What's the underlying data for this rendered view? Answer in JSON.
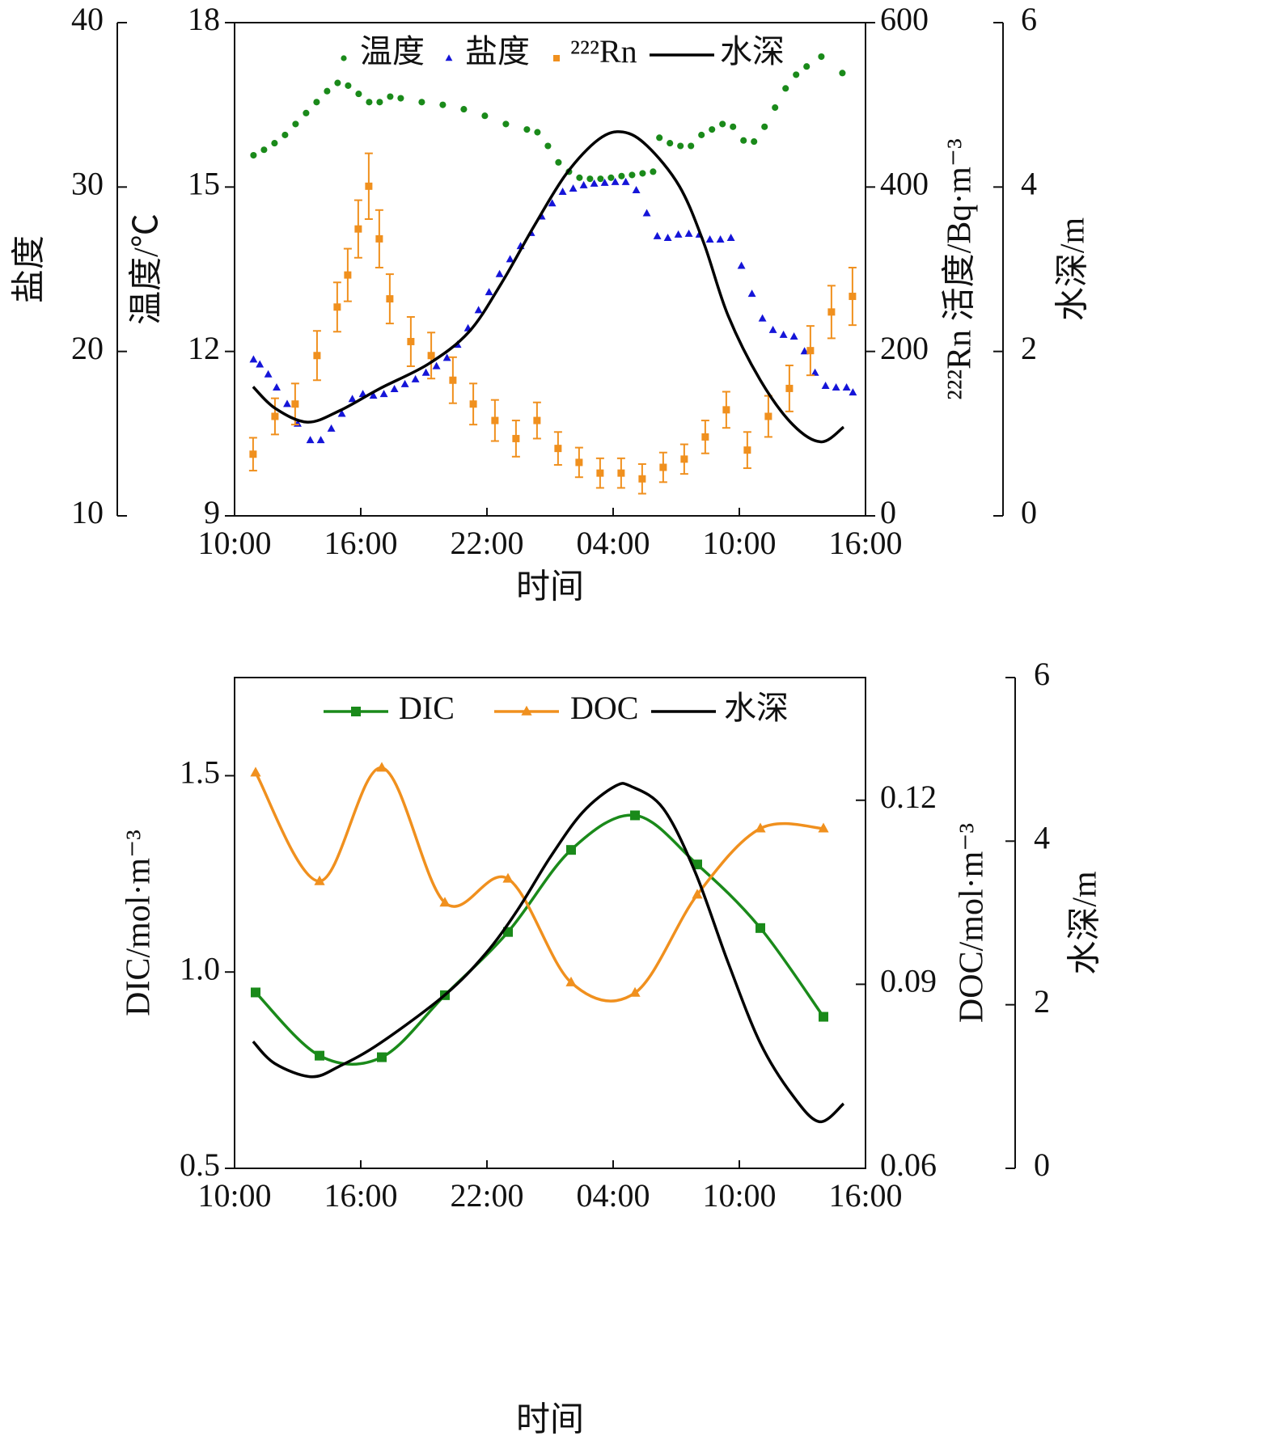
{
  "chart_data": [
    {
      "type": "combo",
      "xlabel": "时间",
      "xlim": [
        10,
        40
      ],
      "xticks": [
        {
          "value": 10,
          "label": "10:00"
        },
        {
          "value": 16,
          "label": "16:00"
        },
        {
          "value": 22,
          "label": "22:00"
        },
        {
          "value": 28,
          "label": "04:00"
        },
        {
          "value": 34,
          "label": "10:00"
        },
        {
          "value": 40,
          "label": "16:00"
        }
      ],
      "ylabel": "温度/℃",
      "ylim": [
        9,
        18
      ],
      "yticks": [
        9,
        12,
        15,
        18
      ],
      "y2label": "²²²Rn 活度/Bq·m⁻³",
      "y2lim": [
        0,
        600
      ],
      "y2ticks": [
        0,
        200,
        400,
        600
      ],
      "y3label": "盐度",
      "y3lim": [
        10,
        40
      ],
      "y3ticks": [
        10,
        20,
        30,
        40
      ],
      "y4label": "水深/m",
      "y4lim": [
        0,
        6
      ],
      "y4ticks": [
        0,
        2,
        4,
        6
      ],
      "series": [
        {
          "name": "温度",
          "type": "scatter",
          "marker": "circle",
          "color": "#1a8a1a",
          "axis": "y",
          "x": [
            10.9,
            11.4,
            11.9,
            12.4,
            12.9,
            13.4,
            13.9,
            14.4,
            14.9,
            15.4,
            15.9,
            16.4,
            16.9,
            17.4,
            17.9,
            18.9,
            19.9,
            20.9,
            21.9,
            22.9,
            23.9,
            24.4,
            24.9,
            25.4,
            25.9,
            26.4,
            26.9,
            27.4,
            27.9,
            28.4,
            28.9,
            29.4,
            29.9,
            30.2,
            30.7,
            31.2,
            31.7,
            32.2,
            32.7,
            33.2,
            33.7,
            34.2,
            34.7,
            35.2,
            35.7,
            36.2,
            36.7,
            37.2,
            37.9,
            38.9
          ],
          "values": [
            15.58,
            15.68,
            15.8,
            15.95,
            16.15,
            16.35,
            16.55,
            16.75,
            16.9,
            16.85,
            16.7,
            16.55,
            16.55,
            16.65,
            16.62,
            16.55,
            16.5,
            16.42,
            16.3,
            16.15,
            16.05,
            16.0,
            15.75,
            15.45,
            15.28,
            15.17,
            15.15,
            15.15,
            15.17,
            15.2,
            15.22,
            15.25,
            15.28,
            15.9,
            15.8,
            15.75,
            15.75,
            15.95,
            16.05,
            16.15,
            16.1,
            15.85,
            15.83,
            16.1,
            16.45,
            16.8,
            17.05,
            17.2,
            17.38,
            17.08
          ]
        },
        {
          "name": "盐度",
          "type": "scatter",
          "marker": "triangle",
          "color": "#1515d8",
          "axis": "y3",
          "x": [
            10.9,
            11.2,
            11.6,
            12.0,
            12.5,
            13.0,
            13.6,
            14.1,
            14.6,
            15.1,
            15.6,
            16.1,
            16.6,
            17.1,
            17.6,
            18.1,
            18.6,
            19.1,
            19.6,
            20.1,
            20.6,
            21.1,
            21.6,
            22.1,
            22.6,
            23.1,
            23.6,
            24.1,
            24.6,
            25.1,
            25.6,
            26.1,
            26.6,
            27.1,
            27.6,
            28.1,
            28.6,
            29.1,
            29.6,
            30.1,
            30.6,
            31.1,
            31.6,
            32.1,
            32.6,
            33.1,
            33.6,
            34.1,
            34.6,
            35.1,
            35.6,
            36.1,
            36.6,
            37.1,
            37.6,
            38.1,
            38.6,
            39.1,
            39.4
          ],
          "values": [
            19.5,
            19.2,
            18.6,
            17.8,
            16.8,
            15.6,
            14.6,
            14.6,
            15.3,
            16.2,
            17.1,
            17.4,
            17.3,
            17.4,
            17.7,
            18.0,
            18.3,
            18.7,
            19.1,
            19.6,
            20.4,
            21.4,
            22.5,
            23.6,
            24.7,
            25.6,
            26.4,
            27.2,
            28.2,
            29.0,
            29.7,
            29.9,
            30.1,
            30.2,
            30.25,
            30.3,
            30.3,
            29.8,
            28.4,
            27.0,
            26.9,
            27.1,
            27.15,
            27.1,
            26.8,
            26.8,
            26.9,
            25.2,
            23.5,
            22.0,
            21.3,
            21.0,
            20.9,
            20.0,
            18.7,
            17.9,
            17.8,
            17.8,
            17.5
          ]
        },
        {
          "name": "²²²Rn",
          "type": "scatter",
          "marker": "square",
          "color": "#f0901e",
          "axis": "y2",
          "x": [
            10.88,
            11.92,
            12.88,
            13.92,
            14.88,
            15.38,
            15.88,
            16.38,
            16.88,
            17.38,
            18.38,
            19.35,
            20.38,
            21.35,
            22.38,
            23.38,
            24.38,
            25.38,
            26.38,
            27.38,
            28.38,
            29.38,
            30.38,
            31.38,
            32.38,
            33.38,
            34.38,
            35.38,
            36.38,
            37.38,
            38.38,
            39.38
          ],
          "values": [
            75,
            121,
            136,
            195,
            254,
            293,
            349,
            401,
            337,
            264,
            212,
            195,
            165,
            136,
            116,
            94,
            116,
            82,
            65,
            52,
            52,
            45,
            59,
            69,
            96,
            129,
            80,
            121,
            155,
            201,
            248,
            267
          ],
          "errors": [
            20,
            22,
            25,
            30,
            30,
            32,
            35,
            40,
            35,
            30,
            30,
            28,
            28,
            25,
            25,
            22,
            22,
            20,
            18,
            18,
            18,
            18,
            18,
            18,
            20,
            22,
            22,
            25,
            28,
            30,
            32,
            35
          ]
        },
        {
          "name": "水深",
          "type": "line",
          "color": "#000000",
          "axis": "y4",
          "x": [
            10.88,
            11.92,
            13.46,
            15,
            16.92,
            19.23,
            21.15,
            22.69,
            24.23,
            25.77,
            27.31,
            28.46,
            29.62,
            31.15,
            32.31,
            33.46,
            35,
            36.54,
            37.88,
            38.96
          ],
          "values": [
            1.57,
            1.31,
            1.14,
            1.28,
            1.55,
            1.85,
            2.24,
            2.83,
            3.52,
            4.16,
            4.58,
            4.67,
            4.5,
            4.01,
            3.32,
            2.44,
            1.65,
            1.11,
            0.9,
            1.08
          ]
        }
      ]
    },
    {
      "type": "combo",
      "xlabel": "时间",
      "xlim": [
        10,
        40
      ],
      "xticks": [
        {
          "value": 10,
          "label": "10:00"
        },
        {
          "value": 16,
          "label": "16:00"
        },
        {
          "value": 22,
          "label": "22:00"
        },
        {
          "value": 28,
          "label": "04:00"
        },
        {
          "value": 34,
          "label": "10:00"
        },
        {
          "value": 40,
          "label": "16:00"
        }
      ],
      "ylabel": "DIC/mol·m⁻³",
      "ylim": [
        0.5,
        1.75
      ],
      "yticks": [
        0.5,
        {
          "value": 1,
          "label": "1.0"
        },
        1.5
      ],
      "y2label": "DOC/mol·m⁻³",
      "y2lim": [
        0.06,
        0.14
      ],
      "y2ticks": [
        0.06,
        0.09,
        0.12
      ],
      "y3label": "水深/m",
      "y3lim": [
        0,
        6
      ],
      "y3ticks": [
        0,
        2,
        4,
        6
      ],
      "series": [
        {
          "name": "DIC",
          "type": "line",
          "marker": "square",
          "color": "#1a8a1a",
          "axis": "y",
          "x": [
            11,
            14.04,
            17,
            20,
            23,
            26,
            29.04,
            32,
            35,
            38
          ],
          "values": [
            0.948,
            0.787,
            0.783,
            0.941,
            1.102,
            1.311,
            1.399,
            1.274,
            1.112,
            0.886
          ]
        },
        {
          "name": "DOC",
          "type": "line",
          "marker": "triangle",
          "color": "#f0901e",
          "axis": "y2",
          "x": [
            11,
            14.04,
            17,
            20,
            23,
            26,
            29.04,
            32,
            35,
            38
          ],
          "values": [
            0.1245,
            0.1068,
            0.1253,
            0.1033,
            0.1072,
            0.0903,
            0.0886,
            0.1046,
            0.1154,
            0.1154
          ]
        },
        {
          "name": "水深",
          "type": "line",
          "color": "#000000",
          "axis": "y3",
          "x": [
            10.88,
            11.92,
            13.65,
            15,
            16.92,
            20,
            21.92,
            23.46,
            25,
            26.54,
            28.08,
            28.85,
            30.38,
            31.92,
            33.46,
            35,
            36.54,
            37.81,
            38.96
          ],
          "values": [
            1.55,
            1.28,
            1.12,
            1.25,
            1.53,
            2.12,
            2.62,
            3.16,
            3.8,
            4.35,
            4.67,
            4.67,
            4.4,
            3.61,
            2.52,
            1.53,
            0.89,
            0.57,
            0.79
          ]
        }
      ]
    }
  ]
}
